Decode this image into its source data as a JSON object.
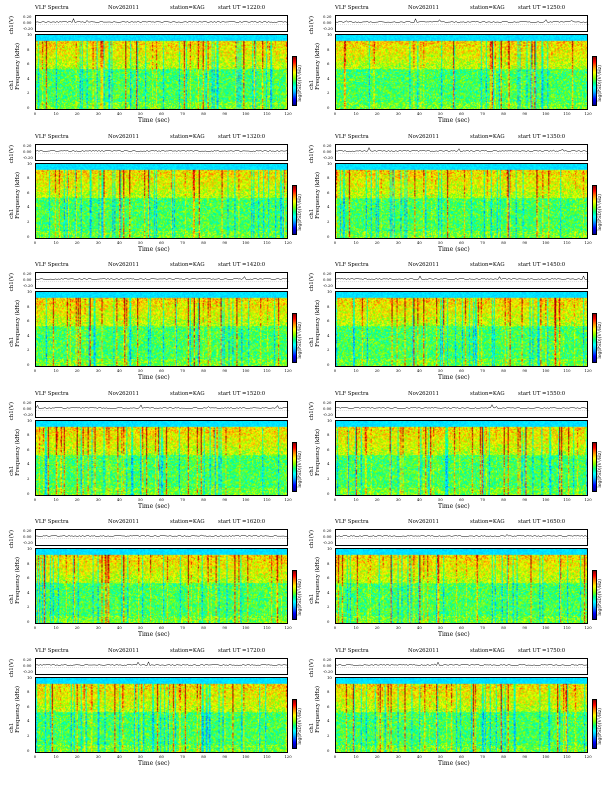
{
  "header": {
    "title": "VLF Spectra",
    "date": "Nov262011",
    "station": "station=KAG",
    "start_prefix": "start  UT  ="
  },
  "axes": {
    "ts_ylabel": "ch1(V)",
    "ts_ticks": [
      "0.20",
      "0.00",
      "-0.20"
    ],
    "freq_ylabel_top": "ch1",
    "freq_ylabel": "Frequency (kHz)",
    "freq_ticks": [
      "10",
      "8",
      "6",
      "4",
      "2",
      "0"
    ],
    "xlabel": "Time (sec)",
    "xticks": [
      "0",
      "10",
      "20",
      "30",
      "40",
      "50",
      "60",
      "70",
      "80",
      "90",
      "100",
      "110",
      "120"
    ],
    "cbar_label": "log(PSD)(V²/Hz)",
    "cbar_ticks": [
      "-2",
      "-4",
      "-6",
      "-8"
    ]
  },
  "colors": {
    "low": "#0000ff",
    "mid": "#00ff7f",
    "high": "#ff0000"
  },
  "chart_data": [
    {
      "type": "heatmap",
      "start_ut": "1220:0",
      "xlim": [
        0,
        120
      ],
      "ylim": [
        0,
        10
      ]
    },
    {
      "type": "heatmap",
      "start_ut": "1250:0",
      "xlim": [
        0,
        120
      ],
      "ylim": [
        0,
        10
      ]
    },
    {
      "type": "heatmap",
      "start_ut": "1320:0",
      "xlim": [
        0,
        120
      ],
      "ylim": [
        0,
        10
      ]
    },
    {
      "type": "heatmap",
      "start_ut": "1350:0",
      "xlim": [
        0,
        120
      ],
      "ylim": [
        0,
        10
      ]
    },
    {
      "type": "heatmap",
      "start_ut": "1420:0",
      "xlim": [
        0,
        120
      ],
      "ylim": [
        0,
        10
      ]
    },
    {
      "type": "heatmap",
      "start_ut": "1450:0",
      "xlim": [
        0,
        120
      ],
      "ylim": [
        0,
        10
      ]
    },
    {
      "type": "heatmap",
      "start_ut": "1520:0",
      "xlim": [
        0,
        120
      ],
      "ylim": [
        0,
        10
      ]
    },
    {
      "type": "heatmap",
      "start_ut": "1550:0",
      "xlim": [
        0,
        120
      ],
      "ylim": [
        0,
        10
      ]
    },
    {
      "type": "heatmap",
      "start_ut": "1620:0",
      "xlim": [
        0,
        120
      ],
      "ylim": [
        0,
        10
      ]
    },
    {
      "type": "heatmap",
      "start_ut": "1650:0",
      "xlim": [
        0,
        120
      ],
      "ylim": [
        0,
        10
      ]
    },
    {
      "type": "heatmap",
      "start_ut": "1720:0",
      "xlim": [
        0,
        120
      ],
      "ylim": [
        0,
        10
      ]
    },
    {
      "type": "heatmap",
      "start_ut": "1750:0",
      "xlim": [
        0,
        120
      ],
      "ylim": [
        0,
        10
      ]
    }
  ]
}
